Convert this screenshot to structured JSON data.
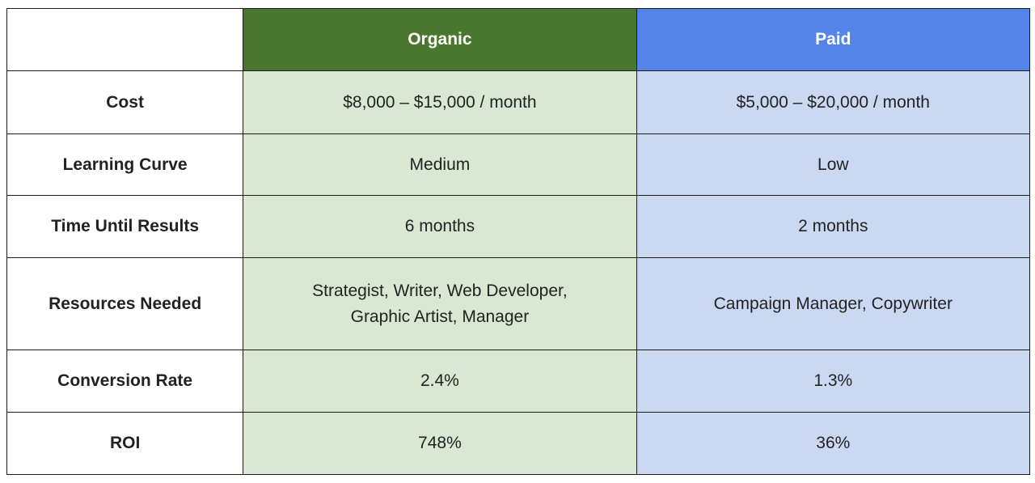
{
  "columns": {
    "organic": "Organic",
    "paid": "Paid"
  },
  "rows": [
    {
      "label": "Cost",
      "organic": "$8,000 – $15,000 / month",
      "paid": "$5,000 – $20,000 / month"
    },
    {
      "label": "Learning Curve",
      "organic": "Medium",
      "paid": "Low"
    },
    {
      "label": "Time Until Results",
      "organic": "6 months",
      "paid": "2 months"
    },
    {
      "label": "Resources Needed",
      "organic_line1": "Strategist, Writer, Web Developer,",
      "organic_line2": "Graphic Artist, Manager",
      "paid": "Campaign Manager, Copywriter"
    },
    {
      "label": "Conversion Rate",
      "organic": "2.4%",
      "paid": "1.3%"
    },
    {
      "label": "ROI",
      "organic": "748%",
      "paid": "36%"
    }
  ],
  "colors": {
    "organic_header": "#4a772f",
    "paid_header": "#5484ea",
    "organic_cell": "#d9e7d3",
    "paid_cell": "#cad8f2"
  }
}
